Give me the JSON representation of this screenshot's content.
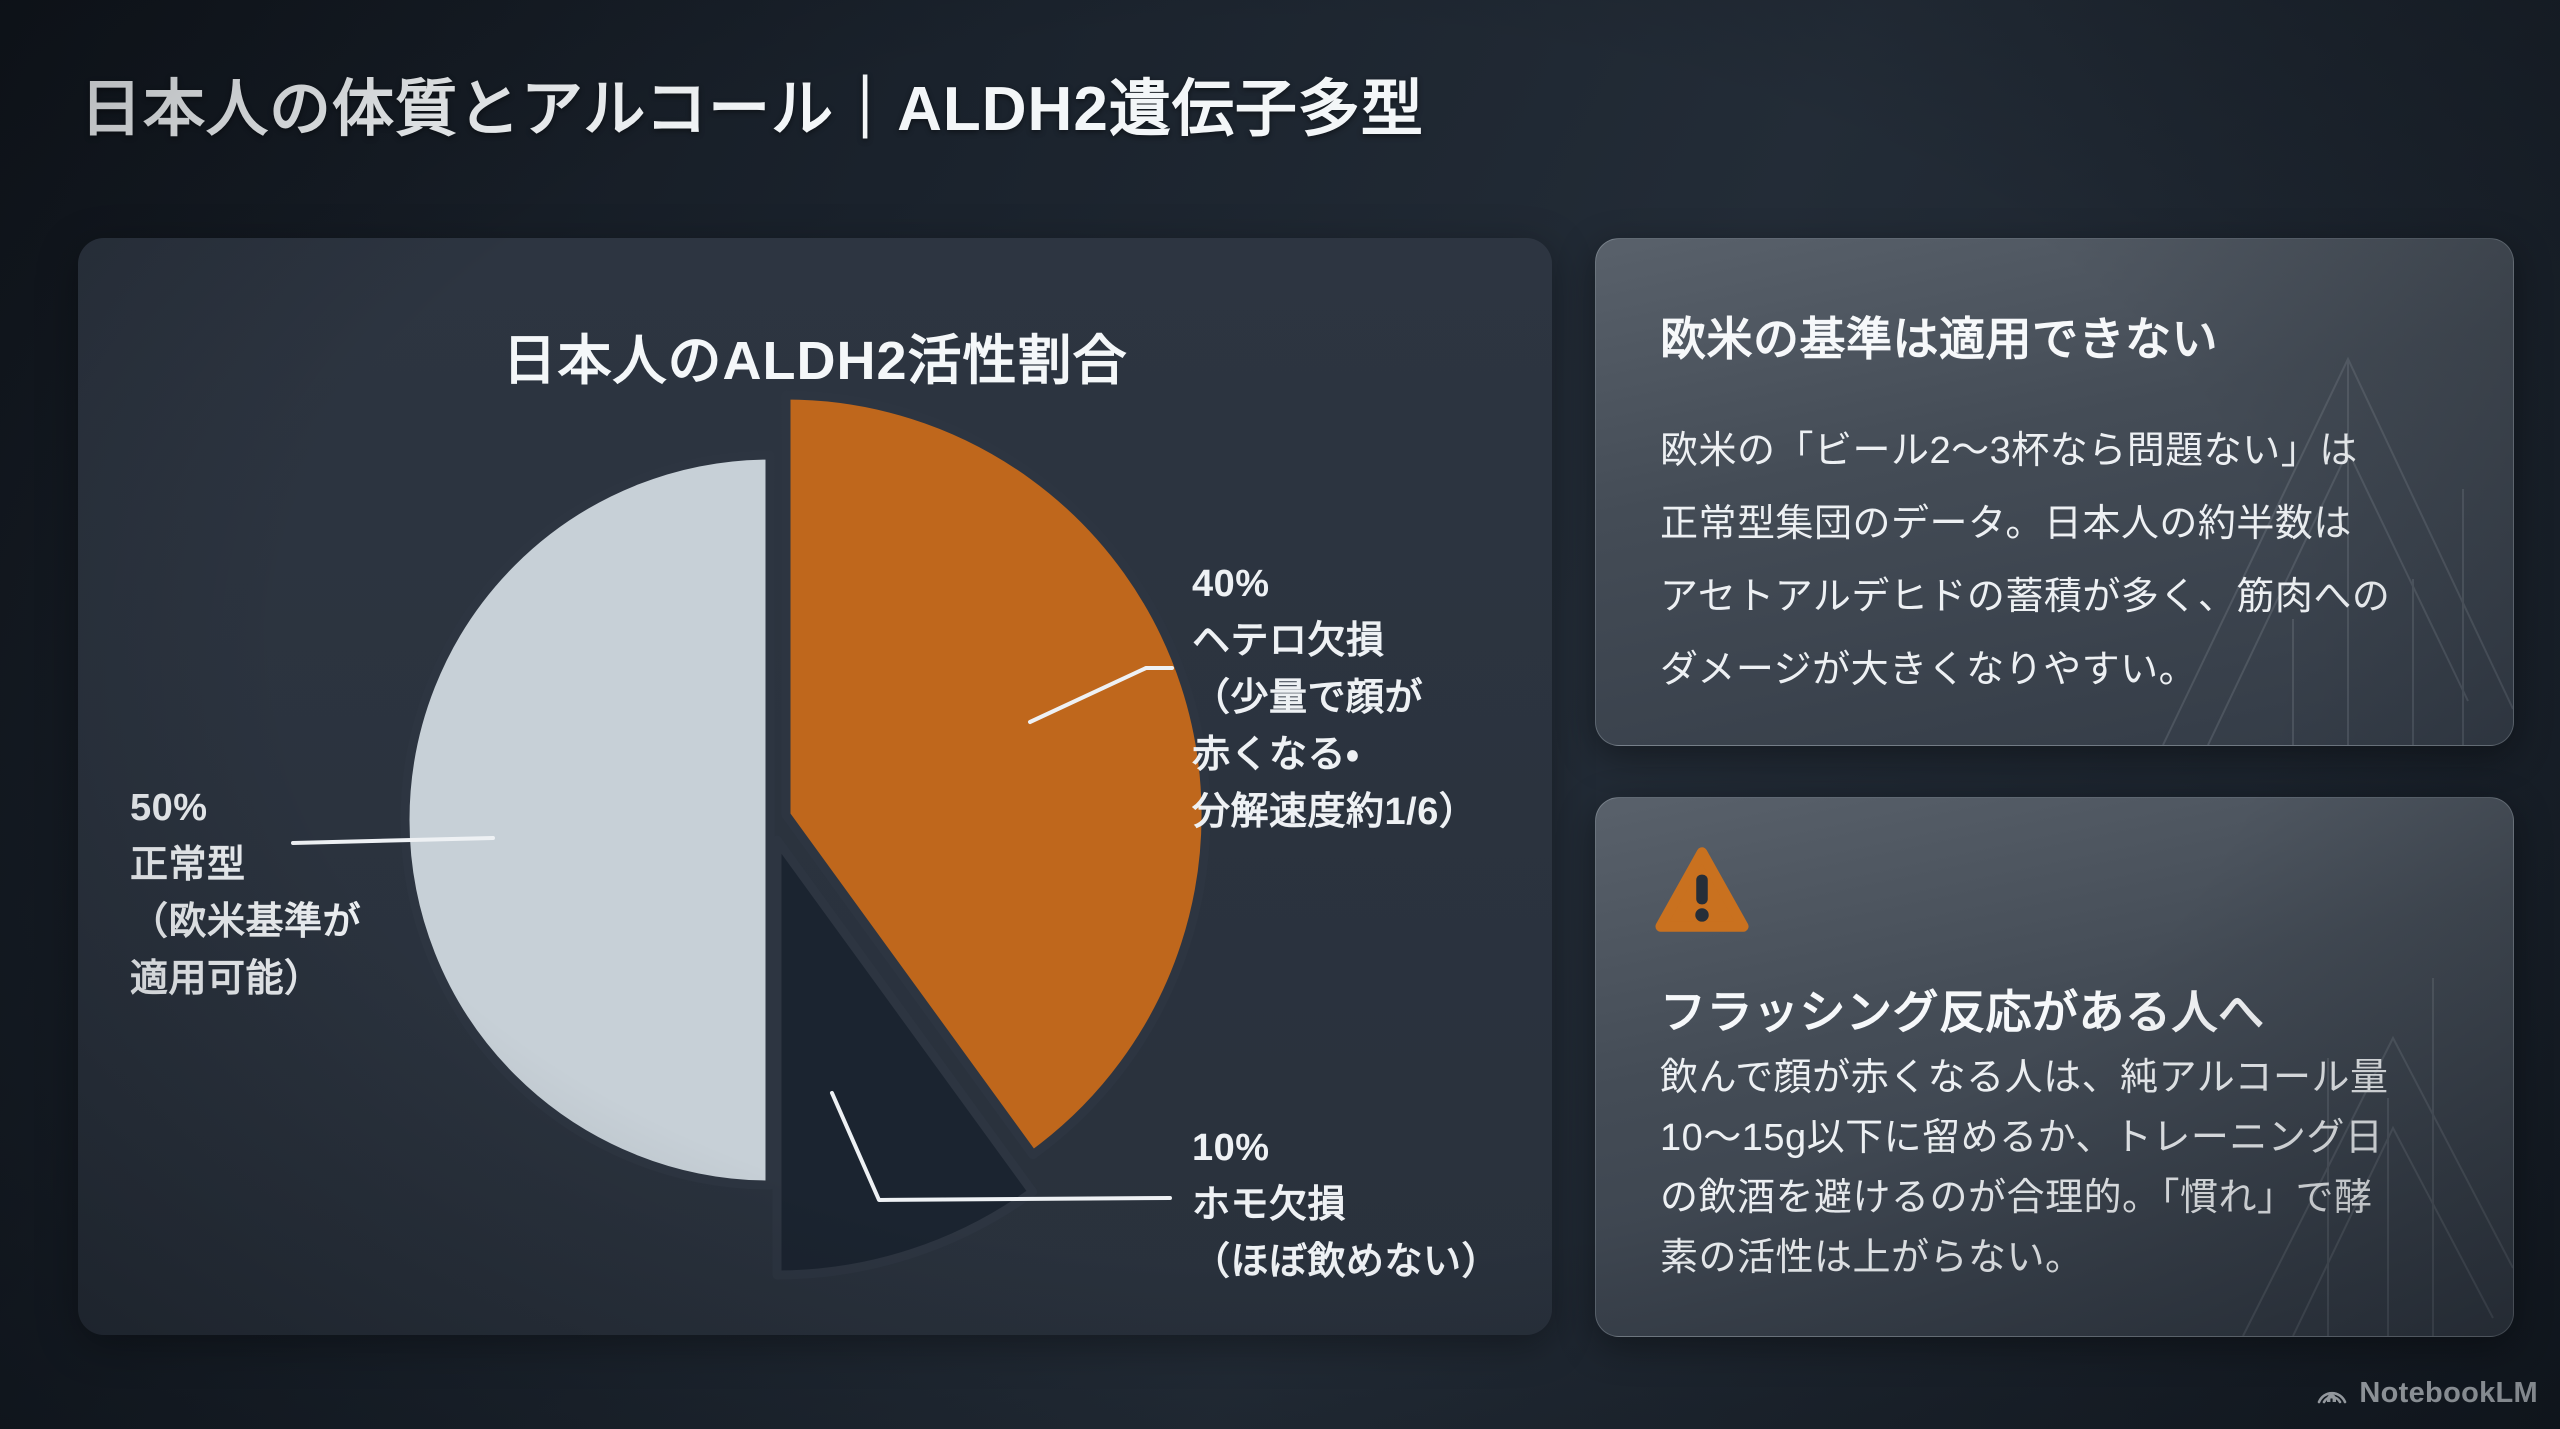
{
  "page": {
    "title": "日本人の体質とアルコール｜ALDH2遺伝子多型",
    "brand": "NotebookLM"
  },
  "chart_data": {
    "type": "pie",
    "title": "日本人のALDH2活性割合",
    "unit": "%",
    "start_angle": "top",
    "direction": "clockwise",
    "legend_position": "callout-labels",
    "slices": [
      {
        "name": "ヘテロ欠損",
        "value": 40,
        "color": "#bf671c",
        "callout": "40%\nヘテロ欠損\n（少量で顔が\n赤くなる・\n分解速度約1/6）"
      },
      {
        "name": "ホモ欠損",
        "value": 10,
        "color": "#1b2430",
        "callout": "10%\nホモ欠損\n（ほぼ飲めない）"
      },
      {
        "name": "正常型",
        "value": 50,
        "color": "#c7d0d7",
        "callout": "50%\n正常型\n（欧米基準が\n適用可能）"
      }
    ]
  },
  "info_cards": {
    "standard": {
      "title": "欧米の基準は適用できない",
      "body": "欧米の「ビール2〜3杯なら問題ない」は\n正常型集団のデータ。日本人の約半数は\nアセトアルデヒドの蓄積が多く、筋肉への\nダメージが大きくなりやすい。"
    },
    "flushing": {
      "icon": "warning-triangle-icon",
      "icon_color": "#c9711f",
      "title": "フラッシング反応がある人へ",
      "body": "飲んで顔が赤くなる人は、純アルコール量\n10〜15g以下に留めるか、トレーニング日\nの飲酒を避けるのが合理的。「慣れ」で酵\n素の活性は上がらない。"
    }
  },
  "colors": {
    "background": "#1a222c",
    "chart_card_bg": "#2b333e",
    "info_card_bg": "#434b55",
    "accent_orange": "#bf671c",
    "slice_gray": "#c7d0d7",
    "slice_dark": "#1b2430",
    "text_primary": "#f3f6f8"
  }
}
